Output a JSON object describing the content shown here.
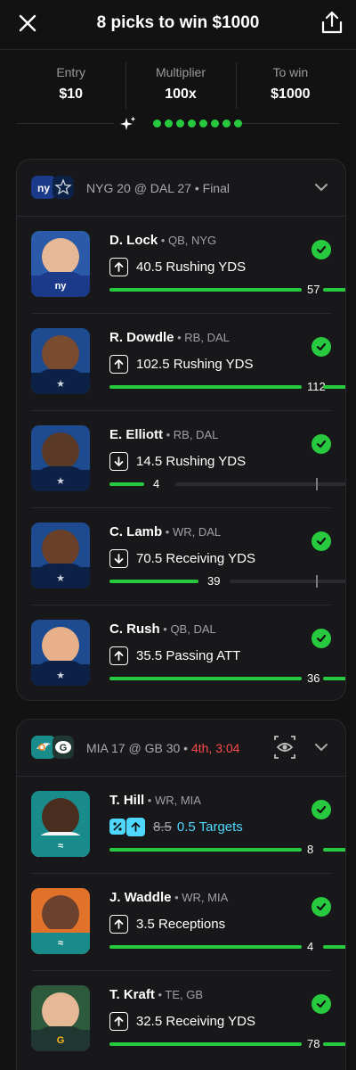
{
  "header": {
    "title": "8 picks to win $1000"
  },
  "stats": [
    {
      "label": "Entry",
      "value": "$10"
    },
    {
      "label": "Multiplier",
      "value": "100x"
    },
    {
      "label": "To win",
      "value": "$1000"
    }
  ],
  "progress": {
    "completed": 8,
    "total": 8
  },
  "colors": {
    "accent_green": "#27c93f",
    "live_red": "#ff4a4a",
    "boost_cyan": "#4fd8ff",
    "background": "#121213",
    "card": "#18181a"
  },
  "games": [
    {
      "matchup": "NYG 20 @ DAL 27",
      "status": " • Final",
      "picks": [
        {
          "name": "D. Lock",
          "meta": " • QB, NYG",
          "line": "40.5 Rushing YDS",
          "direction": "up",
          "actual": "57",
          "fill": 1.0
        },
        {
          "name": "R. Dowdle",
          "meta": " • RB, DAL",
          "line": "102.5 Rushing YDS",
          "direction": "up",
          "actual": "112",
          "fill": 1.0
        },
        {
          "name": "E. Elliott",
          "meta": " • RB, DAL",
          "line": "14.5 Rushing YDS",
          "direction": "down",
          "actual": "4",
          "fill": 0.27
        },
        {
          "name": "C. Lamb",
          "meta": " • WR, DAL",
          "line": "70.5 Receiving YDS",
          "direction": "down",
          "actual": "39",
          "fill": 0.55
        },
        {
          "name": "C. Rush",
          "meta": " • QB, DAL",
          "line": "35.5 Passing ATT",
          "direction": "up",
          "actual": "36",
          "fill": 1.0
        }
      ]
    },
    {
      "matchup": "MIA 17 @ GB 30",
      "status_prefix": " • ",
      "status_live": "4th, 3:04",
      "picks": [
        {
          "name": "T. Hill",
          "meta": " • WR, MIA",
          "original_line": "8.5",
          "line": "0.5 Targets",
          "direction": "up",
          "actual": "8",
          "fill": 1.0,
          "boosted": true
        },
        {
          "name": "J. Waddle",
          "meta": " • WR, MIA",
          "line": "3.5 Receptions",
          "direction": "up",
          "actual": "4",
          "fill": 1.0
        },
        {
          "name": "T. Kraft",
          "meta": " • TE, GB",
          "line": "32.5 Receiving YDS",
          "direction": "up",
          "actual": "78",
          "fill": 1.0
        }
      ]
    }
  ]
}
